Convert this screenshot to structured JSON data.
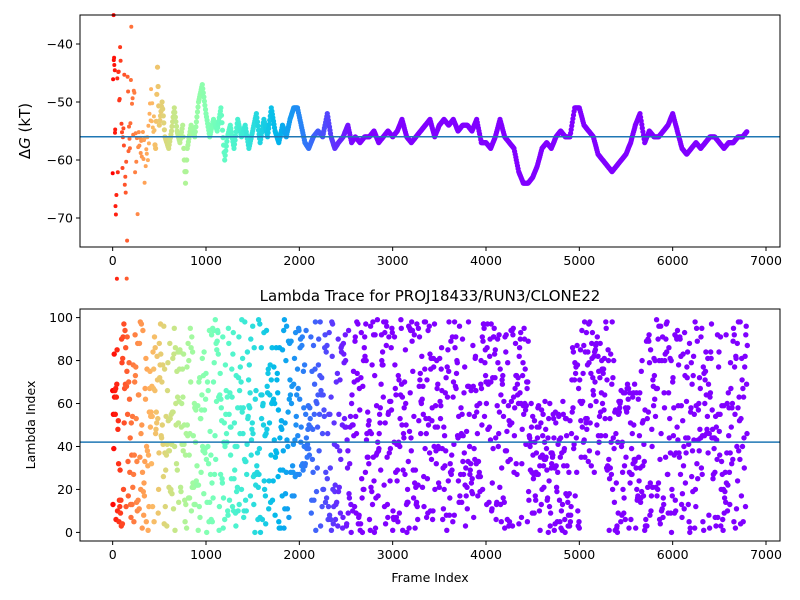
{
  "chart_data": [
    {
      "type": "scatter",
      "title": "",
      "ylabel_prefix": "Δ",
      "ylabel_italic": "G",
      "ylabel_suffix": " (kT)",
      "xlabel": "",
      "xlim": [
        -350,
        7150
      ],
      "ylim": [
        -75,
        -35
      ],
      "xticks": [
        0,
        1000,
        2000,
        3000,
        4000,
        5000,
        6000,
        7000
      ],
      "yticks": [
        -70,
        -60,
        -50,
        -40
      ],
      "reference_line": {
        "y": -56,
        "color": "#1f77b4"
      },
      "colormap": "rainbow (red at frame 0 → violet at late frames)",
      "grid": false,
      "trace_points": [
        [
          0,
          -50
        ],
        [
          10,
          -36
        ],
        [
          15,
          -44
        ],
        [
          20,
          -40
        ],
        [
          25,
          -60
        ],
        [
          30,
          -68
        ],
        [
          40,
          -70
        ],
        [
          50,
          -56
        ],
        [
          60,
          -44
        ],
        [
          70,
          -46
        ],
        [
          80,
          -42
        ],
        [
          90,
          -40
        ],
        [
          100,
          -62
        ],
        [
          110,
          -55
        ],
        [
          120,
          -52
        ],
        [
          130,
          -64
        ],
        [
          140,
          -58
        ],
        [
          150,
          -74
        ],
        [
          160,
          -48
        ],
        [
          170,
          -56
        ],
        [
          180,
          -60
        ],
        [
          190,
          -50
        ],
        [
          200,
          -40
        ],
        [
          220,
          -52
        ],
        [
          240,
          -57
        ],
        [
          260,
          -64
        ],
        [
          280,
          -55
        ],
        [
          300,
          -58
        ],
        [
          330,
          -61
        ],
        [
          360,
          -56
        ],
        [
          400,
          -50
        ],
        [
          430,
          -55
        ],
        [
          460,
          -58
        ],
        [
          480,
          -44
        ],
        [
          500,
          -54
        ],
        [
          530,
          -50
        ],
        [
          560,
          -56
        ],
        [
          600,
          -58
        ],
        [
          630,
          -55
        ],
        [
          660,
          -51
        ],
        [
          690,
          -55
        ],
        [
          720,
          -57
        ],
        [
          750,
          -54
        ],
        [
          780,
          -64
        ],
        [
          800,
          -58
        ],
        [
          840,
          -54
        ],
        [
          880,
          -56
        ],
        [
          920,
          -50
        ],
        [
          960,
          -47
        ],
        [
          1000,
          -52
        ],
        [
          1040,
          -56
        ],
        [
          1080,
          -53
        ],
        [
          1120,
          -55
        ],
        [
          1160,
          -51
        ],
        [
          1200,
          -60
        ],
        [
          1230,
          -56
        ],
        [
          1260,
          -54
        ],
        [
          1300,
          -58
        ],
        [
          1340,
          -53
        ],
        [
          1380,
          -56
        ],
        [
          1420,
          -54
        ],
        [
          1460,
          -58
        ],
        [
          1500,
          -55
        ],
        [
          1540,
          -52
        ],
        [
          1580,
          -57
        ],
        [
          1620,
          -53
        ],
        [
          1660,
          -56
        ],
        [
          1700,
          -51
        ],
        [
          1740,
          -55
        ],
        [
          1780,
          -57
        ],
        [
          1820,
          -54
        ],
        [
          1860,
          -56
        ],
        [
          1900,
          -53
        ],
        [
          1940,
          -51
        ],
        [
          1980,
          -51
        ],
        [
          2020,
          -54
        ],
        [
          2060,
          -57
        ],
        [
          2100,
          -58
        ],
        [
          2150,
          -56
        ],
        [
          2200,
          -55
        ],
        [
          2250,
          -56
        ],
        [
          2300,
          -52
        ],
        [
          2340,
          -56
        ],
        [
          2380,
          -58
        ],
        [
          2420,
          -57
        ],
        [
          2470,
          -56
        ],
        [
          2520,
          -54
        ],
        [
          2560,
          -57
        ],
        [
          2600,
          -56
        ],
        [
          2650,
          -57
        ],
        [
          2700,
          -56
        ],
        [
          2750,
          -56
        ],
        [
          2800,
          -55
        ],
        [
          2850,
          -57
        ],
        [
          2900,
          -56
        ],
        [
          2950,
          -55
        ],
        [
          3000,
          -56
        ],
        [
          3050,
          -55
        ],
        [
          3100,
          -53
        ],
        [
          3150,
          -56
        ],
        [
          3200,
          -57
        ],
        [
          3250,
          -56
        ],
        [
          3300,
          -55
        ],
        [
          3350,
          -54
        ],
        [
          3400,
          -53
        ],
        [
          3450,
          -56
        ],
        [
          3500,
          -54
        ],
        [
          3550,
          -53
        ],
        [
          3600,
          -54
        ],
        [
          3650,
          -53
        ],
        [
          3700,
          -55
        ],
        [
          3750,
          -54
        ],
        [
          3800,
          -54
        ],
        [
          3850,
          -55
        ],
        [
          3900,
          -53
        ],
        [
          3950,
          -57
        ],
        [
          4000,
          -57
        ],
        [
          4050,
          -58
        ],
        [
          4100,
          -56
        ],
        [
          4150,
          -53
        ],
        [
          4200,
          -56
        ],
        [
          4250,
          -57
        ],
        [
          4300,
          -58
        ],
        [
          4350,
          -62
        ],
        [
          4400,
          -64
        ],
        [
          4450,
          -64
        ],
        [
          4500,
          -63
        ],
        [
          4550,
          -61
        ],
        [
          4600,
          -58
        ],
        [
          4650,
          -57
        ],
        [
          4700,
          -58
        ],
        [
          4750,
          -56
        ],
        [
          4800,
          -55
        ],
        [
          4850,
          -56
        ],
        [
          4900,
          -56
        ],
        [
          4950,
          -51
        ],
        [
          5000,
          -51
        ],
        [
          5050,
          -54
        ],
        [
          5100,
          -55
        ],
        [
          5150,
          -56
        ],
        [
          5200,
          -59
        ],
        [
          5250,
          -60
        ],
        [
          5300,
          -61
        ],
        [
          5350,
          -62
        ],
        [
          5400,
          -61
        ],
        [
          5450,
          -60
        ],
        [
          5500,
          -59
        ],
        [
          5550,
          -57
        ],
        [
          5600,
          -54
        ],
        [
          5650,
          -52
        ],
        [
          5700,
          -57
        ],
        [
          5750,
          -55
        ],
        [
          5800,
          -56
        ],
        [
          5850,
          -56
        ],
        [
          5900,
          -55
        ],
        [
          5950,
          -54
        ],
        [
          6000,
          -52
        ],
        [
          6050,
          -55
        ],
        [
          6100,
          -58
        ],
        [
          6150,
          -59
        ],
        [
          6200,
          -58
        ],
        [
          6250,
          -57
        ],
        [
          6300,
          -58
        ],
        [
          6350,
          -57
        ],
        [
          6400,
          -56
        ],
        [
          6450,
          -56
        ],
        [
          6500,
          -57
        ],
        [
          6550,
          -58
        ],
        [
          6600,
          -57
        ],
        [
          6650,
          -57
        ],
        [
          6700,
          -56
        ],
        [
          6750,
          -56
        ],
        [
          6800,
          -55
        ]
      ]
    },
    {
      "type": "scatter",
      "title": "Lambda Trace for PROJ18433/RUN3/CLONE22",
      "xlabel": "Frame Index",
      "ylabel": "Lambda Index",
      "xlim": [
        -350,
        7150
      ],
      "ylim": [
        -4,
        104
      ],
      "xticks": [
        0,
        1000,
        2000,
        3000,
        4000,
        5000,
        6000,
        7000
      ],
      "yticks": [
        0,
        20,
        40,
        60,
        80,
        100
      ],
      "reference_line": {
        "y": 42,
        "color": "#1f77b4"
      },
      "colormap": "rainbow (red at frame 0 → violet at late frames)",
      "grid": false,
      "points_per_frame_step": 4,
      "lambda_range": [
        0,
        99
      ],
      "frame_range": [
        0,
        6800
      ],
      "density_notes": "Points span the full lambda range 0–99 at nearly every frame; regions near frames 4500–4900 and 5400–5600 are concentrated below ~60, while frames 5000–5300 concentrate above ~50."
    }
  ]
}
